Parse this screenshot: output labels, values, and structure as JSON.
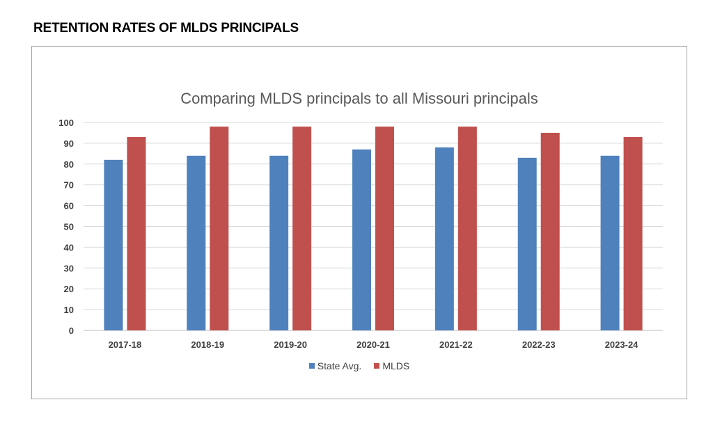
{
  "page": {
    "heading": "RETENTION RATES OF MLDS PRINCIPALS"
  },
  "colors": {
    "state": "#4f81bd",
    "mlds": "#c0504d",
    "grid": "#d9d9d9",
    "axis_text": "#404040"
  },
  "chart_data": {
    "type": "bar",
    "title": "Comparing MLDS principals to all Missouri principals",
    "xlabel": "",
    "ylabel": "",
    "categories": [
      "2017-18",
      "2018-19",
      "2019-20",
      "2020-21",
      "2021-22",
      "2022-23",
      "2023-24"
    ],
    "series": [
      {
        "name": "State Avg.",
        "values": [
          82,
          84,
          84,
          87,
          88,
          83,
          84
        ]
      },
      {
        "name": "MLDS",
        "values": [
          93,
          98,
          98,
          98,
          98,
          95,
          93
        ]
      }
    ],
    "ylim": [
      0,
      100
    ],
    "yticks": [
      0,
      10,
      20,
      30,
      40,
      50,
      60,
      70,
      80,
      90,
      100
    ],
    "grid": true,
    "legend_position": "bottom"
  }
}
